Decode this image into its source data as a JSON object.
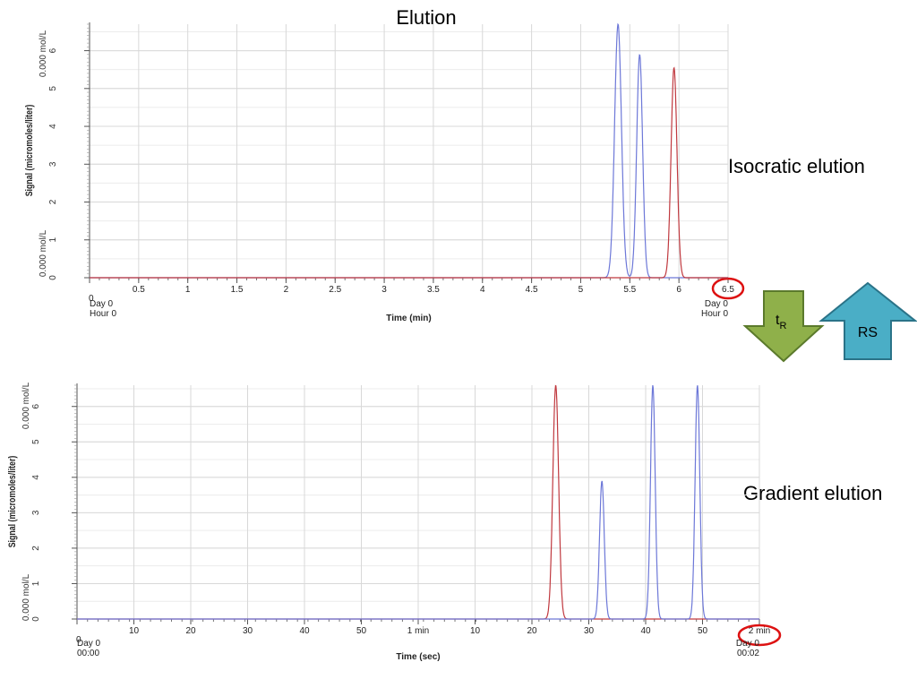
{
  "slide_title": "Elution",
  "labels": {
    "isocratic": "Isocratic elution",
    "gradient": "Gradient elution"
  },
  "indicators": {
    "tr_main": "t",
    "tr_sub": "R",
    "rs": "RS",
    "down_arrow_color": "#8fb04a",
    "up_arrow_color": "#4aaec6",
    "highlight_circle_color": "#dd1111"
  },
  "chart_data": [
    {
      "id": "isocratic",
      "type": "line",
      "title": "",
      "xlabel": "Time (min)",
      "ylabel": "Signal (micromoles/liter)",
      "xlim": [
        0,
        6.5
      ],
      "ylim": [
        0,
        6.7
      ],
      "x_ticks": [
        "0",
        "0.5",
        "1",
        "1.5",
        "2",
        "2.5",
        "3",
        "3.5",
        "4",
        "4.5",
        "5",
        "5.5",
        "6",
        "6.5"
      ],
      "y_ticks": [
        "0",
        "1",
        "2",
        "3",
        "4",
        "5",
        "6"
      ],
      "y_top_annotation": "0.000 mol/L",
      "y_bottom_annotation": "0.000 mol/L",
      "x_start_label": [
        "Day 0",
        "Hour 0"
      ],
      "x_end_label": [
        "Day 0",
        "Hour 0"
      ],
      "highlighted_tick": "6.5",
      "grid": true,
      "series": [
        {
          "color": "#6d78d8",
          "peaks": [
            {
              "center": 5.38,
              "height": 6.7,
              "width": 0.035
            },
            {
              "center": 5.6,
              "height": 5.9,
              "width": 0.03
            }
          ]
        },
        {
          "color": "#c0393f",
          "peaks": [
            {
              "center": 5.95,
              "height": 5.55,
              "width": 0.03
            }
          ]
        }
      ]
    },
    {
      "id": "gradient",
      "type": "line",
      "title": "",
      "xlabel": "Time (sec)",
      "ylabel": "Signal (micromoles/liter)",
      "xlim": [
        0,
        130
      ],
      "ylim": [
        0,
        6.6
      ],
      "x_ticks": [
        "0",
        "10",
        "20",
        "30",
        "40",
        "50",
        "1 min",
        "10",
        "20",
        "30",
        "40",
        "50",
        "2 min"
      ],
      "y_ticks": [
        "0",
        "1",
        "2",
        "3",
        "4",
        "5",
        "6"
      ],
      "y_top_annotation": "0.000 mol/L",
      "y_bottom_annotation": "0.000 mol/L",
      "x_start_label": [
        "Day 0",
        "00:00"
      ],
      "x_end_label": [
        "Day 0",
        "00:02"
      ],
      "highlighted_tick": "2 min",
      "grid": true,
      "series": [
        {
          "color": "#c0393f",
          "peaks": [
            {
              "center": 91.2,
              "height": 6.6,
              "width": 0.55
            }
          ]
        },
        {
          "color": "#6d78d8",
          "peaks": [
            {
              "center": 100.0,
              "height": 3.9,
              "width": 0.45
            },
            {
              "center": 109.7,
              "height": 6.6,
              "width": 0.45
            },
            {
              "center": 118.2,
              "height": 6.6,
              "width": 0.45
            }
          ]
        }
      ]
    }
  ]
}
